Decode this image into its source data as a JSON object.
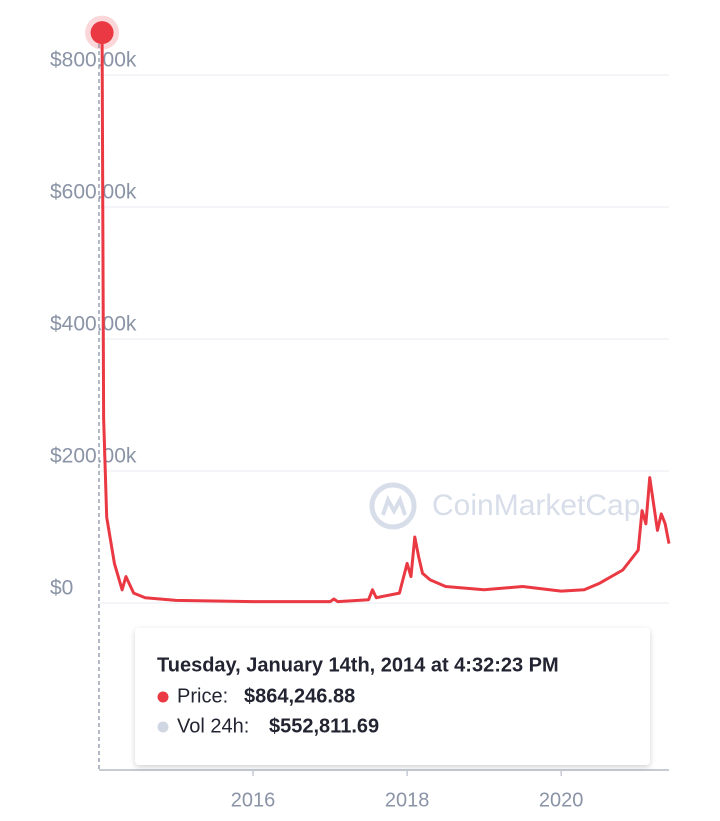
{
  "chart_data": {
    "type": "line",
    "x": [
      2014.04,
      2014.06,
      2014.1,
      2014.2,
      2014.3,
      2014.35,
      2014.45,
      2014.6,
      2015,
      2016,
      2017,
      2017.05,
      2017.1,
      2017.5,
      2017.55,
      2017.6,
      2017.9,
      2018.0,
      2018.05,
      2018.1,
      2018.15,
      2018.2,
      2018.3,
      2018.5,
      2019,
      2019.5,
      2020,
      2020.3,
      2020.5,
      2020.8,
      2021.0,
      2021.05,
      2021.1,
      2021.15,
      2021.2,
      2021.25,
      2021.3,
      2021.35,
      2021.4
    ],
    "series": [
      {
        "name": "Price",
        "color": "#ea3943",
        "values": [
          864246.88,
          280000,
          130000,
          60000,
          20000,
          40000,
          15000,
          8000,
          4000,
          2000,
          2000,
          6000,
          2000,
          5000,
          20000,
          8000,
          15000,
          60000,
          40000,
          100000,
          70000,
          45000,
          35000,
          25000,
          20000,
          25000,
          18000,
          20000,
          30000,
          50000,
          80000,
          140000,
          120000,
          190000,
          150000,
          110000,
          135000,
          120000,
          90000
        ]
      }
    ],
    "xlim": [
      2014,
      2021.4
    ],
    "xticks": [
      2016,
      2018,
      2020
    ],
    "ylim": [
      -250000,
      900000
    ],
    "yticks": [
      {
        "value": 0,
        "label": "$0"
      },
      {
        "value": 200000,
        "label": "$200.00k"
      },
      {
        "value": 400000,
        "label": "$400.00k"
      },
      {
        "value": 600000,
        "label": "$600.00k"
      },
      {
        "value": 800000,
        "label": "$800.00k"
      }
    ],
    "grid": true,
    "watermark": "CoinMarketCap",
    "tooltip": {
      "date": "Tuesday, January 14th, 2014 at 4:32:23 PM",
      "price_label": "Price:",
      "price": "$864,246.88",
      "volume_label": "Vol 24h:",
      "volume": "$552,811.69"
    }
  }
}
